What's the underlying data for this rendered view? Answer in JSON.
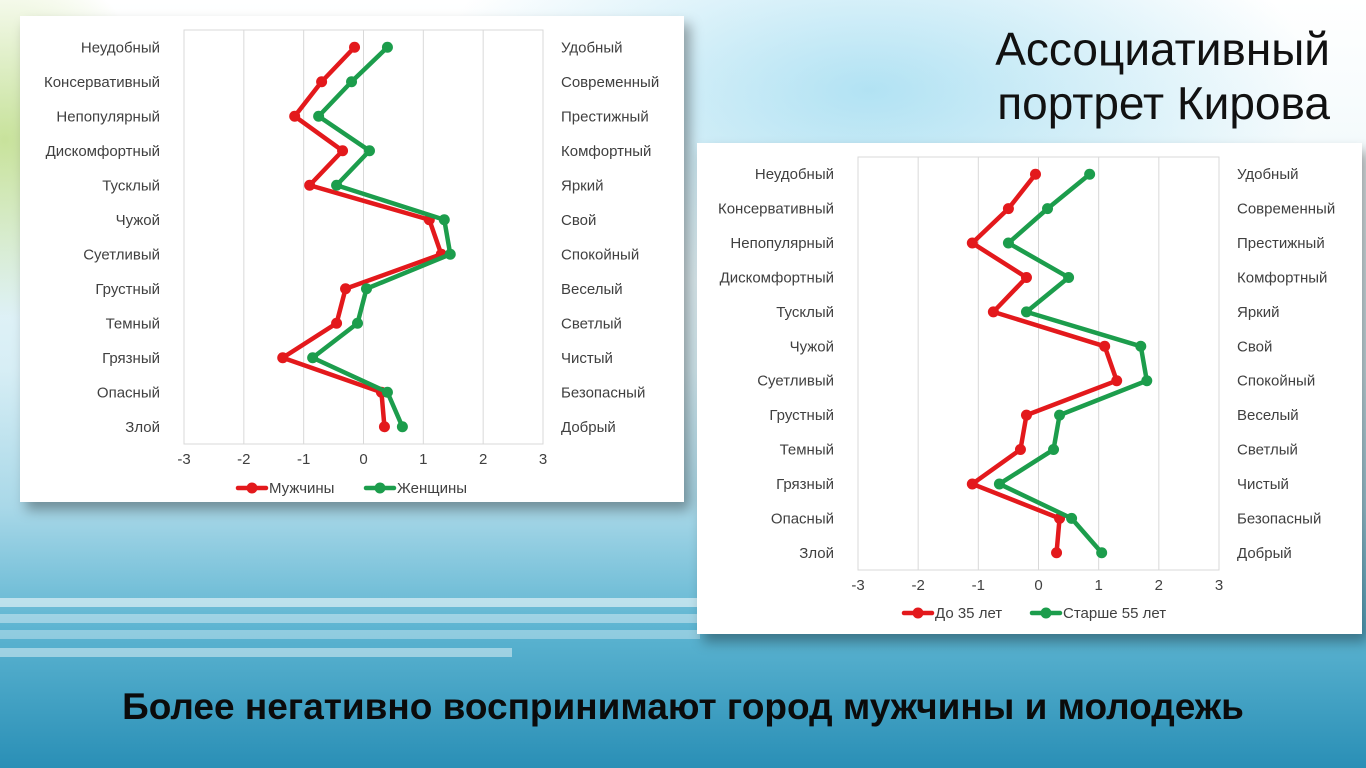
{
  "slide": {
    "title_line1": "Ассоциативный",
    "title_line2": "портрет Кирова",
    "caption": "Более негативно воспринимают город мужчины и молодежь"
  },
  "chart_data": [
    {
      "type": "line",
      "orientation": "horizontal-values",
      "left_labels": [
        "Неудобный",
        "Консервативный",
        "Непопулярный",
        "Дискомфортный",
        "Тусклый",
        "Чужой",
        "Суетливый",
        "Грустный",
        "Темный",
        "Грязный",
        "Опасный",
        "Злой"
      ],
      "right_labels": [
        "Удобный",
        "Современный",
        "Престижный",
        "Комфортный",
        "Яркий",
        "Свой",
        "Спокойный",
        "Веселый",
        "Светлый",
        "Чистый",
        "Безопасный",
        "Добрый"
      ],
      "xlim": [
        -3,
        3
      ],
      "xticks": [
        -3,
        -2,
        -1,
        0,
        1,
        2,
        3
      ],
      "grid": true,
      "legend_position": "bottom",
      "series": [
        {
          "name": "Мужчины",
          "color": "#e3191c",
          "values": [
            -0.15,
            -0.7,
            -1.15,
            -0.35,
            -0.9,
            1.1,
            1.3,
            -0.3,
            -0.45,
            -1.35,
            0.3,
            0.35
          ]
        },
        {
          "name": "Женщины",
          "color": "#1c9d4c",
          "values": [
            0.4,
            -0.2,
            -0.75,
            0.1,
            -0.45,
            1.35,
            1.45,
            0.05,
            -0.1,
            -0.85,
            0.4,
            0.65
          ]
        }
      ]
    },
    {
      "type": "line",
      "orientation": "horizontal-values",
      "left_labels": [
        "Неудобный",
        "Консервативный",
        "Непопулярный",
        "Дискомфортный",
        "Тусклый",
        "Чужой",
        "Суетливый",
        "Грустный",
        "Темный",
        "Грязный",
        "Опасный",
        "Злой"
      ],
      "right_labels": [
        "Удобный",
        "Современный",
        "Престижный",
        "Комфортный",
        "Яркий",
        "Свой",
        "Спокойный",
        "Веселый",
        "Светлый",
        "Чистый",
        "Безопасный",
        "Добрый"
      ],
      "xlim": [
        -3,
        3
      ],
      "xticks": [
        -3,
        -2,
        -1,
        0,
        1,
        2,
        3
      ],
      "grid": true,
      "legend_position": "bottom",
      "series": [
        {
          "name": "До 35 лет",
          "color": "#e3191c",
          "values": [
            -0.05,
            -0.5,
            -1.1,
            -0.2,
            -0.75,
            1.1,
            1.3,
            -0.2,
            -0.3,
            -1.1,
            0.35,
            0.3
          ]
        },
        {
          "name": "Старше 55 лет",
          "color": "#1c9d4c",
          "values": [
            0.85,
            0.15,
            -0.5,
            0.5,
            -0.2,
            1.7,
            1.8,
            0.35,
            0.25,
            -0.65,
            0.55,
            1.05
          ]
        }
      ]
    }
  ]
}
